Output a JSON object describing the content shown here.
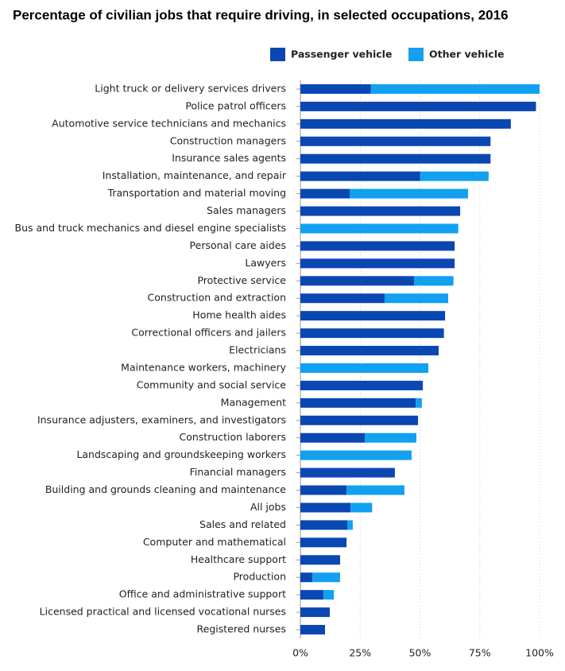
{
  "chart_data": {
    "type": "stacked-barh",
    "title": "Percentage of civilian jobs that require driving, in selected occupations, 2016",
    "categories": [
      "Light truck or delivery services drivers",
      "Police patrol officers",
      "Automotive service technicians and mechanics",
      "Construction managers",
      "Insurance sales agents",
      "Installation, maintenance, and repair",
      "Transportation and material moving",
      "Sales managers",
      "Bus and truck mechanics and diesel engine specialists",
      "Personal care aides",
      "Lawyers",
      "Protective service",
      "Construction and extraction",
      "Home health aides",
      "Correctional officers and jailers",
      "Electricians",
      "Maintenance workers, machinery",
      "Community and social service",
      "Management",
      "Insurance adjusters, examiners, and investigators",
      "Construction laborers",
      "Landscaping and groundskeeping workers",
      "Financial managers",
      "Building and grounds cleaning and maintenance",
      "All jobs",
      "Sales and related",
      "Computer and mathematical",
      "Healthcare support",
      "Production",
      "Office and administrative support",
      "Licensed practical and licensed vocational nurses",
      "Registered nurses"
    ],
    "series": [
      {
        "name": "Passenger vehicle",
        "color": "#0b47b3",
        "values": [
          29.5,
          98.5,
          88,
          79.5,
          79.5,
          50,
          20.6,
          66.8,
          0,
          64.5,
          64.5,
          47.5,
          35.2,
          60.5,
          60,
          57.8,
          0,
          51.2,
          48.2,
          49.2,
          27,
          0,
          39.5,
          19.3,
          21,
          19.6,
          19.3,
          16.6,
          5,
          9.6,
          12.3,
          10.3
        ]
      },
      {
        "name": "Other vehicle",
        "color": "#12a0f0",
        "values": [
          70.5,
          0,
          0,
          0,
          0,
          28.7,
          49.5,
          0,
          66,
          0,
          0,
          16.5,
          26.6,
          0,
          0,
          0,
          53.5,
          0,
          2.6,
          0,
          21.5,
          46.5,
          0,
          24.2,
          9,
          2.3,
          0,
          0,
          11.6,
          4.4,
          0,
          0
        ]
      }
    ],
    "xlim": [
      0,
      100
    ],
    "xticks": [
      {
        "value": 0,
        "label": "0%"
      },
      {
        "value": 25,
        "label": "25%"
      },
      {
        "value": 50,
        "label": "50%"
      },
      {
        "value": 75,
        "label": "75%"
      },
      {
        "value": 100,
        "label": "100%"
      }
    ],
    "grid": true
  }
}
